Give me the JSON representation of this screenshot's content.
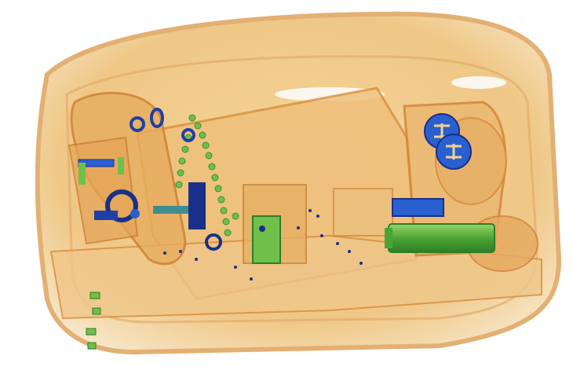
{
  "image": {
    "subject": "x-ray-baggage-scan",
    "colors": {
      "background": "#ffffff",
      "organic_light": "#f5deb0",
      "organic_mid": "#eab46a",
      "organic_dark": "#d98a3a",
      "mixed_green": "#6fbf4a",
      "metal_blue": "#2a5fcf",
      "metal_dark": "#1a2f8a"
    }
  }
}
